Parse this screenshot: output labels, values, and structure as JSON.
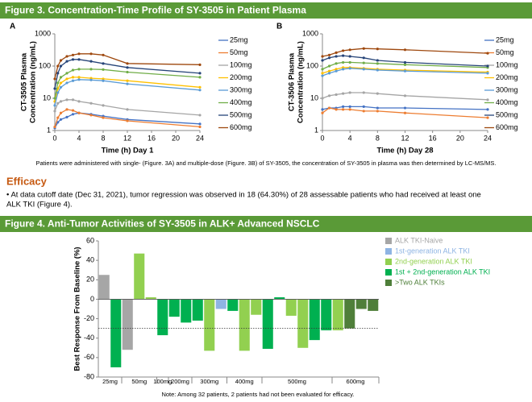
{
  "figure3": {
    "title": "Figure 3. Concentration-Time Profile of SY-3505 in Patient Plasma",
    "caption": "Patients were administered with single- (Figure. 3A) and multiple-dose (Figure. 3B) of SY-3505, the concentration of SY-3505 in plasma was then determined by LC-MS/MS."
  },
  "efficacy": {
    "heading": "Efficacy",
    "lines": [
      "• At data cutoff date (Dec 31, 2021), tumor regression was observed in 18 (64.30%) of 28 assessable patients who had received at least one",
      "ALK TKI (Figure 4)."
    ]
  },
  "figure4": {
    "title": "Figure 4. Anti-Tumor Activities of SY-3505 in ALK+ Advanced NSCLC",
    "note": "Note: Among 32 patients, 2 patients had not been evaluated for efficacy."
  },
  "chart_data": [
    {
      "type": "line",
      "panel": "A",
      "xlabel": "Time (h) Day 1",
      "ylabel": [
        "CT-3505 Plasma",
        "Concentration (ng/mL)"
      ],
      "log_y": true,
      "xlim": [
        0,
        24
      ],
      "xticks": [
        0,
        4,
        8,
        12,
        16,
        20,
        24
      ],
      "ylim": [
        1,
        1000
      ],
      "yticks": [
        1,
        10,
        100,
        1000
      ],
      "x": [
        0,
        0.5,
        1,
        2,
        3,
        4,
        6,
        8,
        12,
        24
      ],
      "series": [
        {
          "name": "25mg",
          "color": "#4472c4",
          "values": [
            1.2,
            1.8,
            2.2,
            2.6,
            3.2,
            3.5,
            3.2,
            2.8,
            2.2,
            1.6
          ]
        },
        {
          "name": "50mg",
          "color": "#ed7d31",
          "values": [
            1.3,
            2.5,
            3.5,
            4.5,
            4.2,
            3.5,
            3,
            2.5,
            2,
            1.3
          ]
        },
        {
          "name": "100mg",
          "color": "#a5a5a5",
          "values": [
            4,
            7,
            8,
            9,
            9,
            8,
            7,
            6,
            4.5,
            3
          ]
        },
        {
          "name": "200mg",
          "color": "#ffc000",
          "values": [
            8,
            20,
            30,
            40,
            45,
            45,
            42,
            40,
            35,
            22
          ]
        },
        {
          "name": "300mg",
          "color": "#5b9bd5",
          "values": [
            6,
            15,
            22,
            30,
            35,
            38,
            37,
            35,
            28,
            18
          ]
        },
        {
          "name": "400mg",
          "color": "#70ad47",
          "values": [
            10,
            30,
            45,
            60,
            75,
            80,
            80,
            78,
            65,
            45
          ]
        },
        {
          "name": "500mg",
          "color": "#264478",
          "values": [
            20,
            60,
            100,
            140,
            160,
            160,
            140,
            120,
            90,
            60
          ]
        },
        {
          "name": "600mg",
          "color": "#9e480e",
          "values": [
            40,
            100,
            150,
            200,
            220,
            240,
            240,
            220,
            120,
            110
          ]
        }
      ]
    },
    {
      "type": "line",
      "panel": "B",
      "xlabel": "Time (h) Day 28",
      "ylabel": [
        "CT-3506 Plasma",
        "Concentration (ng/mL)"
      ],
      "log_y": true,
      "xlim": [
        0,
        24
      ],
      "xticks": [
        0,
        4,
        8,
        12,
        16,
        20,
        24
      ],
      "ylim": [
        1,
        1000
      ],
      "yticks": [
        1,
        10,
        100,
        1000
      ],
      "x": [
        0,
        1,
        2,
        3,
        4,
        6,
        8,
        12,
        24
      ],
      "series": [
        {
          "name": "25mg",
          "color": "#4472c4",
          "values": [
            4.5,
            5,
            5,
            5.5,
            5.5,
            5.5,
            5,
            5,
            4.5
          ]
        },
        {
          "name": "50mg",
          "color": "#ed7d31",
          "values": [
            3.5,
            5,
            4.5,
            4.5,
            4.5,
            4,
            4,
            3.5,
            2.5
          ]
        },
        {
          "name": "100mg",
          "color": "#a5a5a5",
          "values": [
            10,
            12,
            13,
            14,
            15,
            15,
            14,
            12,
            9
          ]
        },
        {
          "name": "200mg",
          "color": "#ffc000",
          "values": [
            60,
            70,
            80,
            90,
            90,
            85,
            80,
            75,
            65
          ]
        },
        {
          "name": "300mg",
          "color": "#5b9bd5",
          "values": [
            50,
            60,
            70,
            80,
            85,
            80,
            75,
            70,
            60
          ]
        },
        {
          "name": "400mg",
          "color": "#70ad47",
          "values": [
            80,
            100,
            120,
            130,
            130,
            125,
            120,
            110,
            90
          ]
        },
        {
          "name": "500mg",
          "color": "#264478",
          "values": [
            150,
            180,
            200,
            210,
            200,
            180,
            150,
            130,
            100
          ]
        },
        {
          "name": "600mg",
          "color": "#9e480e",
          "values": [
            200,
            220,
            260,
            300,
            320,
            350,
            340,
            320,
            250
          ]
        }
      ]
    },
    {
      "type": "waterfall",
      "ylabel": "Best Response From Baseline (%)",
      "ylim": [
        -80,
        60
      ],
      "yticks": [
        60,
        40,
        20,
        0,
        -20,
        -40,
        -60,
        -80
      ],
      "reference_line": -30,
      "series": [
        {
          "name": "ALK TKI-Naive",
          "color": "#a6a6a6"
        },
        {
          "name": "1st-generation ALK TKI",
          "color": "#8eb4e3"
        },
        {
          "name": "2nd-generation ALK TKI",
          "color": "#92d050"
        },
        {
          "name": "1st + 2nd-generation ALK TKI",
          "color": "#00b050"
        },
        {
          "name": ">Two ALK TKIs",
          "color": "#4f7f3a"
        }
      ],
      "bars": [
        {
          "value": 25,
          "series": 0
        },
        {
          "value": -70,
          "series": 3
        },
        {
          "value": -52,
          "series": 0
        },
        {
          "value": 47,
          "series": 2
        },
        {
          "value": 2,
          "series": 2
        },
        {
          "value": -37,
          "series": 3
        },
        {
          "value": -18,
          "series": 3
        },
        {
          "value": -24,
          "series": 3
        },
        {
          "value": -22,
          "series": 3
        },
        {
          "value": -53,
          "series": 2
        },
        {
          "value": -10,
          "series": 1
        },
        {
          "value": -12,
          "series": 3
        },
        {
          "value": -53,
          "series": 2
        },
        {
          "value": -16,
          "series": 2
        },
        {
          "value": -51,
          "series": 3
        },
        {
          "value": 2,
          "series": 3
        },
        {
          "value": -17,
          "series": 2
        },
        {
          "value": -50,
          "series": 2
        },
        {
          "value": -42,
          "series": 3
        },
        {
          "value": -32,
          "series": 3
        },
        {
          "value": -32,
          "series": 2
        },
        {
          "value": -30,
          "series": 4
        },
        {
          "value": -10,
          "series": 4
        },
        {
          "value": -12,
          "series": 4
        }
      ],
      "dose_groups": [
        {
          "label": "25mg",
          "size": 2
        },
        {
          "label": "50mg",
          "size": 3
        },
        {
          "label": "100mg",
          "size": 1
        },
        {
          "label": "200mg",
          "size": 2
        },
        {
          "label": "300mg",
          "size": 3
        },
        {
          "label": "400mg",
          "size": 3
        },
        {
          "label": "500mg",
          "size": 6
        },
        {
          "label": "600mg",
          "size": 4
        }
      ]
    }
  ]
}
